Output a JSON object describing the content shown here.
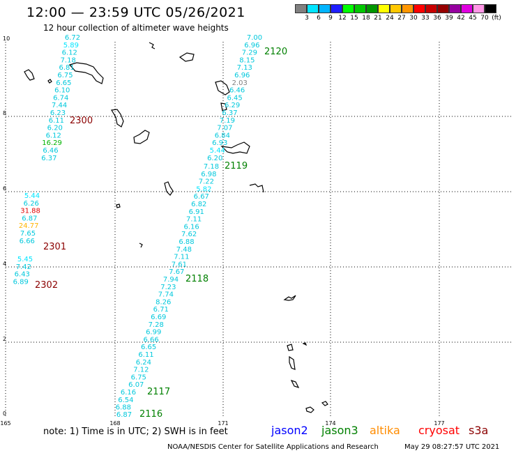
{
  "header": {
    "title": "12:00 — 23:59 UTC 05/26/2021",
    "subtitle": "12 hour collection of altimeter wave heights"
  },
  "colorbar": {
    "unit": "(ft)",
    "swatches": [
      "#808080",
      "#00e5ff",
      "#00b4ff",
      "#1e1eff",
      "#00ff00",
      "#00c800",
      "#009600",
      "#ffff00",
      "#ffc800",
      "#ff9600",
      "#ff0000",
      "#c80000",
      "#960000",
      "#9600a0",
      "#e000e0",
      "#ff96e6",
      "#000000"
    ],
    "labels": [
      "3",
      "6",
      "9",
      "12",
      "15",
      "18",
      "21",
      "24",
      "27",
      "30",
      "33",
      "36",
      "39",
      "42",
      "45",
      "70",
      "(ft)"
    ]
  },
  "axes": {
    "x_ticks": [
      "165",
      "168",
      "171",
      "174",
      "177"
    ],
    "y_ticks": [
      "0",
      "2",
      "4",
      "6",
      "8",
      "10"
    ]
  },
  "tracks": [
    {
      "id": "2120",
      "label": "2120",
      "color": "#008000",
      "points": [
        {
          "v": "7.00",
          "c": "#00c8dc"
        },
        {
          "v": "6.96",
          "c": "#00c8dc"
        },
        {
          "v": "7.29",
          "c": "#00c8dc"
        },
        {
          "v": "8.15",
          "c": "#00c8dc"
        },
        {
          "v": "7.13",
          "c": "#00c8dc"
        },
        {
          "v": "6.96",
          "c": "#00c8dc"
        },
        {
          "v": "2.03",
          "c": "#808080"
        },
        {
          "v": "6.46",
          "c": "#00c8dc"
        },
        {
          "v": "6.45",
          "c": "#00c8dc"
        },
        {
          "v": "6.29",
          "c": "#00c8dc"
        },
        {
          "v": "6.37",
          "c": "#00c8dc"
        },
        {
          "v": "7.19",
          "c": "#00c8dc"
        },
        {
          "v": "7.07",
          "c": "#00c8dc"
        },
        {
          "v": "6.84",
          "c": "#00c8dc"
        },
        {
          "v": "6.93",
          "c": "#00c8dc"
        },
        {
          "v": "5.44",
          "c": "#00e5ff"
        },
        {
          "v": "6.20",
          "c": "#00c8dc"
        }
      ]
    },
    {
      "id": "2119",
      "label": "2119",
      "color": "#008000",
      "points": [
        {
          "v": "7.18",
          "c": "#00c8dc"
        },
        {
          "v": "6.98",
          "c": "#00c8dc"
        },
        {
          "v": "7.22",
          "c": "#00c8dc"
        },
        {
          "v": "5.82",
          "c": "#00e5ff"
        },
        {
          "v": "6.67",
          "c": "#00c8dc"
        },
        {
          "v": "6.82",
          "c": "#00c8dc"
        },
        {
          "v": "6.91",
          "c": "#00c8dc"
        },
        {
          "v": "7.11",
          "c": "#00c8dc"
        },
        {
          "v": "6.16",
          "c": "#00c8dc"
        },
        {
          "v": "7.62",
          "c": "#00c8dc"
        },
        {
          "v": "6.88",
          "c": "#00c8dc"
        },
        {
          "v": "7.48",
          "c": "#00c8dc"
        },
        {
          "v": "7.11",
          "c": "#00c8dc"
        },
        {
          "v": "7.61",
          "c": "#00c8dc"
        },
        {
          "v": "7.67",
          "c": "#00c8dc"
        }
      ]
    },
    {
      "id": "2118",
      "label": "2118",
      "color": "#008000",
      "points": [
        {
          "v": "7.94",
          "c": "#00c8dc"
        },
        {
          "v": "7.23",
          "c": "#00c8dc"
        },
        {
          "v": "7.74",
          "c": "#00c8dc"
        },
        {
          "v": "8.26",
          "c": "#00c8dc"
        },
        {
          "v": "6.71",
          "c": "#00c8dc"
        },
        {
          "v": "6.69",
          "c": "#00c8dc"
        },
        {
          "v": "7.28",
          "c": "#00c8dc"
        },
        {
          "v": "6.99",
          "c": "#00c8dc"
        },
        {
          "v": "6.66",
          "c": "#00c8dc"
        },
        {
          "v": "6.65",
          "c": "#00c8dc"
        },
        {
          "v": "6.11",
          "c": "#00c8dc"
        },
        {
          "v": "6.24",
          "c": "#00c8dc"
        },
        {
          "v": "7.12",
          "c": "#00c8dc"
        },
        {
          "v": "6.75",
          "c": "#00c8dc"
        },
        {
          "v": "6.07",
          "c": "#00c8dc"
        }
      ]
    },
    {
      "id": "2117",
      "label": "2117",
      "color": "#008000",
      "points": [
        {
          "v": "6.16",
          "c": "#00c8dc"
        },
        {
          "v": "6.54",
          "c": "#00c8dc"
        },
        {
          "v": "6.88",
          "c": "#00c8dc"
        }
      ]
    },
    {
      "id": "2116",
      "label": "2116",
      "color": "#008000",
      "points": [
        {
          "v": "6.87",
          "c": "#00c8dc"
        }
      ]
    },
    {
      "id": "2300",
      "label": "2300",
      "color": "#8b0000",
      "points": [
        {
          "v": "6.72",
          "c": "#00c8dc"
        },
        {
          "v": "5.89",
          "c": "#00e5ff"
        },
        {
          "v": "6.12",
          "c": "#00c8dc"
        },
        {
          "v": "7.18",
          "c": "#00c8dc"
        },
        {
          "v": "6.81",
          "c": "#00c8dc"
        },
        {
          "v": "6.75",
          "c": "#00c8dc"
        },
        {
          "v": "6.65",
          "c": "#00c8dc"
        },
        {
          "v": "6.10",
          "c": "#00c8dc"
        },
        {
          "v": "6.74",
          "c": "#00c8dc"
        },
        {
          "v": "7.44",
          "c": "#00c8dc"
        },
        {
          "v": "6.23",
          "c": "#00c8dc"
        },
        {
          "v": "6.11",
          "c": "#00c8dc"
        },
        {
          "v": "6.20",
          "c": "#00c8dc"
        },
        {
          "v": "6.12",
          "c": "#00c8dc"
        },
        {
          "v": "16.29",
          "c": "#00b400"
        },
        {
          "v": "6.46",
          "c": "#00c8dc"
        },
        {
          "v": "6.37",
          "c": "#00c8dc"
        }
      ]
    },
    {
      "id": "2301",
      "label": "2301",
      "color": "#8b0000",
      "points": [
        {
          "v": "5.44",
          "c": "#00e5ff"
        },
        {
          "v": "6.26",
          "c": "#00c8dc"
        },
        {
          "v": "31.88",
          "c": "#e00000"
        },
        {
          "v": "6.87",
          "c": "#00c8dc"
        },
        {
          "v": "24.77",
          "c": "#ffb400"
        },
        {
          "v": "7.65",
          "c": "#00c8dc"
        },
        {
          "v": "6.66",
          "c": "#00c8dc"
        }
      ]
    },
    {
      "id": "2302",
      "label": "2302",
      "color": "#8b0000",
      "points": [
        {
          "v": "5.45",
          "c": "#00e5ff"
        },
        {
          "v": "7.42",
          "c": "#00c8dc"
        },
        {
          "v": "6.43",
          "c": "#00c8dc"
        },
        {
          "v": "6.89",
          "c": "#00c8dc"
        }
      ]
    }
  ],
  "footer": {
    "note": "note:  1) Time is in UTC;  2) SWH is in feet",
    "satellites": [
      {
        "name": "jason2",
        "color": "#0000ff"
      },
      {
        "name": "jason3",
        "color": "#008000"
      },
      {
        "name": "altika",
        "color": "#ff8c00"
      },
      {
        "name": "cryosat",
        "color": "#ff0000"
      },
      {
        "name": "s3a",
        "color": "#8b0000"
      }
    ],
    "credit": "NOAA/NESDIS Center for Satellite Applications and Research",
    "timestamp": "May 29 08:27:57 UTC 2021"
  }
}
